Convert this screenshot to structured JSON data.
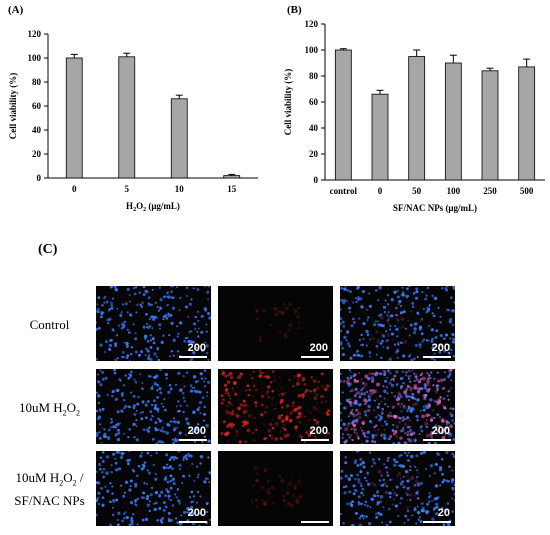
{
  "panels": {
    "a_label": "(A)",
    "b_label": "(B)",
    "c_label": "(C)"
  },
  "chart_data": [
    {
      "type": "bar",
      "categories": [
        "0",
        "5",
        "10",
        "15"
      ],
      "values": [
        100,
        101,
        66,
        2
      ],
      "errors": [
        3,
        3,
        3,
        1
      ],
      "xlabel": "H2O2 (μg/mL)",
      "ylabel": "Cell viability (%)",
      "ylim": [
        0,
        120
      ],
      "yticks": [
        0,
        20,
        40,
        60,
        80,
        100,
        120
      ],
      "bar_color": "#a6a6a6"
    },
    {
      "type": "bar",
      "categories": [
        "control",
        "0",
        "50",
        "100",
        "250",
        "500"
      ],
      "values": [
        100,
        66,
        95,
        90,
        84,
        87
      ],
      "errors": [
        1,
        3,
        5,
        6,
        2,
        6
      ],
      "xlabel": "SF/NAC NPs (μg/mL)",
      "ylabel": "Cell viability (%)",
      "ylim": [
        0,
        120
      ],
      "yticks": [
        0,
        20,
        40,
        60,
        80,
        100,
        120
      ],
      "bar_color": "#a6a6a6"
    }
  ],
  "micrograph_grid": {
    "rows": [
      {
        "label": "Control",
        "scale_labels": [
          "200",
          "200",
          "200"
        ],
        "channels": [
          "blue",
          "red",
          "merge"
        ],
        "red_level": 0.05
      },
      {
        "label": "10uM H2O2",
        "scale_labels": [
          "200",
          "200",
          "200"
        ],
        "channels": [
          "blue",
          "red",
          "merge"
        ],
        "red_level": 0.9
      },
      {
        "label": "10uM H2O2 / SF/NAC NPs",
        "scale_labels": [
          "200",
          "",
          "20"
        ],
        "channels": [
          "blue",
          "red",
          "merge"
        ],
        "red_level": 0.1
      }
    ],
    "colors": {
      "nucleus": "#3a7bff",
      "ros": "#ff2a2a",
      "background": "#050505"
    }
  }
}
